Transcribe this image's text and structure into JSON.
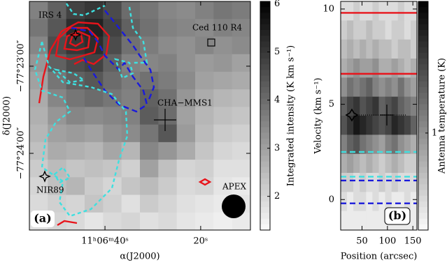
{
  "chart_data": [
    {
      "type": "heatmap",
      "panel_label": "(a)",
      "xlabel": "α(J2000)",
      "ylabel": "δ(J2000)",
      "xlim": [
        55.8,
        9.6
      ],
      "ylim": [
        -1492.8,
        -1335.4
      ],
      "xticks": [
        {
          "value": 40,
          "label": "11ʰ06ᵐ40ˢ"
        },
        {
          "value": 20,
          "label": "20ˢ"
        }
      ],
      "yticks": [
        {
          "value": -1380,
          "label": "−77°23′00″"
        },
        {
          "value": -1440,
          "label": "−77°24′00″"
        }
      ],
      "colorbar": {
        "label": "Integrated intensity (K km s⁻¹)",
        "lim": [
          1.3,
          6.05
        ],
        "ticks": [
          2,
          3,
          4,
          5,
          6
        ]
      },
      "annotations": [
        "IRS 4",
        "Ced 110 R4",
        "CHA−MMS1",
        "NIR89",
        "APEX"
      ],
      "z": [
        [
          3.6,
          4.2,
          4.8,
          5.0,
          4.6,
          4.0,
          3.8,
          3.5,
          3.4,
          3.6,
          3.8,
          3.7
        ],
        [
          3.8,
          4.4,
          5.2,
          5.4,
          4.8,
          4.2,
          3.9,
          3.6,
          3.5,
          3.4,
          3.6,
          3.5
        ],
        [
          3.5,
          4.6,
          5.0,
          5.2,
          4.6,
          3.9,
          3.7,
          3.4,
          3.3,
          3.5,
          3.3,
          3.4
        ],
        [
          3.2,
          4.2,
          4.6,
          4.8,
          4.2,
          3.6,
          3.5,
          3.6,
          3.3,
          3.1,
          3.2,
          3.0
        ],
        [
          3.0,
          3.8,
          4.2,
          4.4,
          4.0,
          3.7,
          3.9,
          3.7,
          3.4,
          3.0,
          2.9,
          2.8
        ],
        [
          2.8,
          3.5,
          3.8,
          4.0,
          3.8,
          3.6,
          4.2,
          3.9,
          3.2,
          2.8,
          2.6,
          2.5
        ],
        [
          2.7,
          3.2,
          3.5,
          3.4,
          3.5,
          3.6,
          4.3,
          4.0,
          3.0,
          2.6,
          2.4,
          2.3
        ],
        [
          2.6,
          3.0,
          3.1,
          3.0,
          3.3,
          3.4,
          3.8,
          4.4,
          3.1,
          2.5,
          2.2,
          2.1
        ],
        [
          2.4,
          2.8,
          2.7,
          2.6,
          2.9,
          2.6,
          3.5,
          3.2,
          2.8,
          2.3,
          2.0,
          1.9
        ],
        [
          2.2,
          2.5,
          2.3,
          2.4,
          2.3,
          2.1,
          3.0,
          2.4,
          2.0,
          2.1,
          1.8,
          1.8
        ],
        [
          2.0,
          2.4,
          2.6,
          2.2,
          2.0,
          2.3,
          2.5,
          2.2,
          1.9,
          2.0,
          1.7,
          1.6
        ],
        [
          1.9,
          2.1,
          2.0,
          2.3,
          2.1,
          1.8,
          2.2,
          2.0,
          1.8,
          1.7,
          1.6,
          1.7
        ],
        [
          1.8,
          2.0,
          1.9,
          1.7,
          1.9,
          2.0,
          1.8,
          1.9,
          1.7,
          1.6,
          1.5,
          1.6
        ]
      ]
    },
    {
      "type": "heatmap",
      "panel_label": "(b)",
      "xlabel": "Position (arcsec)",
      "ylabel": "Velocity (km s⁻¹)",
      "xlim": [
        8,
        158
      ],
      "ylim": [
        -1.6,
        10.4
      ],
      "xticks": [
        50,
        100,
        150
      ],
      "yticks": [
        0,
        5,
        10
      ],
      "colorbar": {
        "label": "Antenna temperature (K)",
        "lim": [
          0.3,
          1.95
        ],
        "ticks": [
          1
        ]
      },
      "lines": [
        {
          "value": 9.8,
          "color": "#e8141b",
          "style": "solid"
        },
        {
          "value": 6.6,
          "color": "#e8141b",
          "style": "solid"
        },
        {
          "value": 2.5,
          "color": "#3ee0e0",
          "style": "dashed"
        },
        {
          "value": 1.2,
          "color": "#3ee0e0",
          "style": "dashed"
        },
        {
          "value": 1.0,
          "color": "#1a1adb",
          "style": "dashed"
        },
        {
          "value": -0.2,
          "color": "#1a1adb",
          "style": "dashed"
        }
      ],
      "z": [
        [
          0.5,
          0.5,
          0.6,
          0.5,
          0.5,
          0.6,
          0.5,
          0.5,
          0.5,
          0.6,
          0.5,
          0.5
        ],
        [
          0.6,
          0.7,
          0.6,
          0.6,
          0.7,
          0.6,
          0.6,
          0.5,
          0.6,
          0.6,
          0.5,
          0.6
        ],
        [
          0.7,
          0.8,
          0.7,
          0.8,
          0.7,
          0.8,
          0.7,
          0.7,
          0.6,
          0.7,
          0.7,
          0.6
        ],
        [
          0.8,
          0.9,
          1.0,
          0.9,
          0.9,
          1.0,
          0.8,
          0.8,
          0.9,
          0.8,
          0.7,
          0.8
        ],
        [
          1.0,
          1.2,
          1.1,
          1.2,
          1.3,
          1.1,
          1.0,
          1.1,
          1.0,
          1.2,
          1.0,
          0.9
        ],
        [
          1.3,
          1.5,
          1.6,
          1.4,
          1.5,
          1.6,
          1.3,
          1.4,
          1.5,
          1.3,
          1.2,
          1.1
        ],
        [
          1.4,
          1.6,
          1.8,
          1.7,
          1.6,
          1.5,
          1.4,
          1.5,
          1.7,
          1.6,
          1.5,
          1.3
        ],
        [
          1.1,
          1.3,
          1.4,
          1.2,
          1.1,
          1.0,
          0.9,
          1.1,
          1.2,
          1.0,
          0.9,
          0.8
        ],
        [
          0.8,
          0.9,
          0.8,
          0.7,
          0.8,
          0.7,
          0.6,
          0.7,
          0.8,
          0.7,
          0.6,
          0.6
        ],
        [
          0.6,
          0.6,
          0.5,
          0.6,
          0.5,
          0.5,
          0.6,
          0.5,
          0.6,
          0.5,
          0.5,
          0.5
        ],
        [
          0.5,
          0.4,
          0.5,
          0.5,
          0.4,
          0.5,
          0.4,
          0.5,
          0.4,
          0.4,
          0.5,
          0.4
        ],
        [
          0.4,
          0.4,
          0.4,
          0.4,
          0.4,
          0.4,
          0.4,
          0.4,
          0.4,
          0.4,
          0.4,
          0.4
        ]
      ]
    }
  ]
}
